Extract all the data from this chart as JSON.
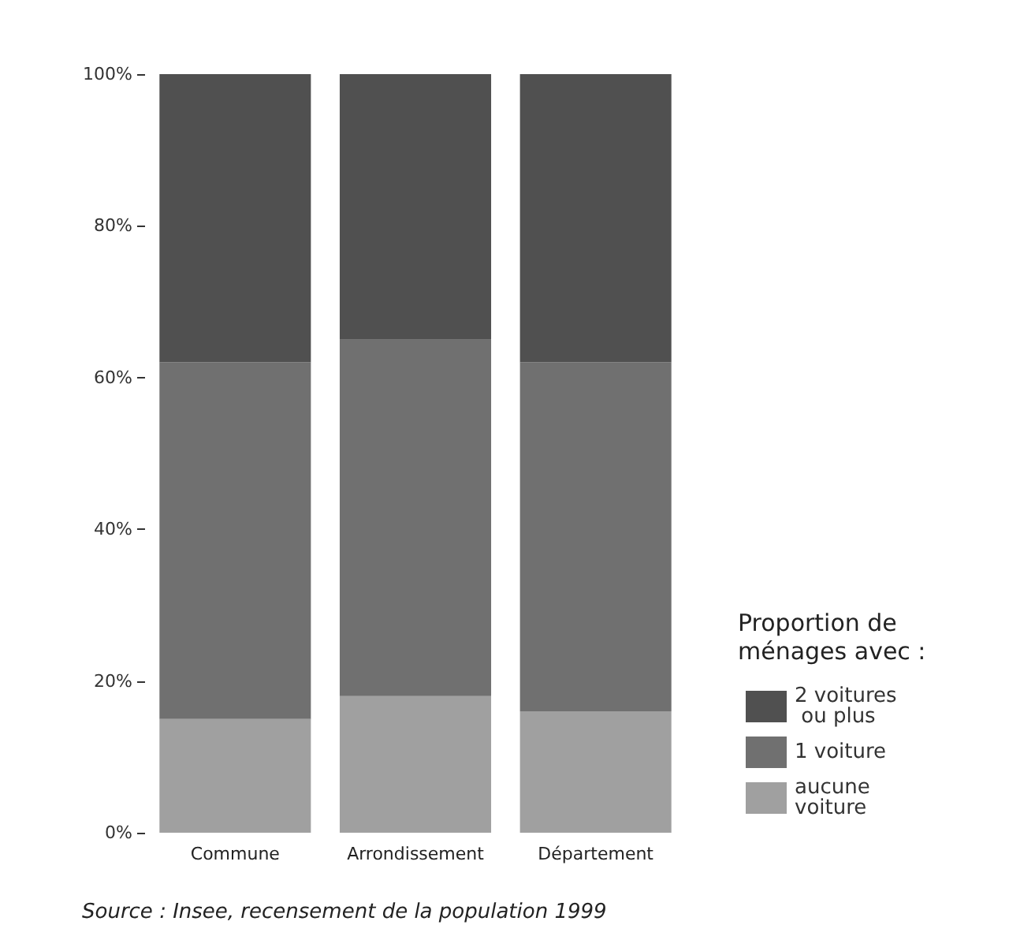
{
  "chart_data": {
    "type": "bar",
    "stacked": true,
    "categories": [
      "Commune",
      "Arrondissement",
      "Département"
    ],
    "series": [
      {
        "name": "aucune voiture",
        "color": "#a0a0a0",
        "values": [
          15,
          18,
          16
        ]
      },
      {
        "name": "1 voiture",
        "color": "#707070",
        "values": [
          47,
          47,
          46
        ]
      },
      {
        "name": "2 voitures ou plus",
        "color": "#505050",
        "values": [
          38,
          35,
          38
        ]
      }
    ],
    "ylim": [
      0,
      100
    ],
    "yticks": [
      {
        "value": 0,
        "label": "0%"
      },
      {
        "value": 20,
        "label": "20%"
      },
      {
        "value": 40,
        "label": "40%"
      },
      {
        "value": 60,
        "label": "60%"
      },
      {
        "value": 80,
        "label": "80%"
      },
      {
        "value": 100,
        "label": "100%"
      }
    ],
    "grid": false,
    "legend": "bottom right",
    "legend_title": "Proportion de ménages avec :",
    "annotations": [
      "Source : Insee, recensement de la population 1999"
    ]
  }
}
